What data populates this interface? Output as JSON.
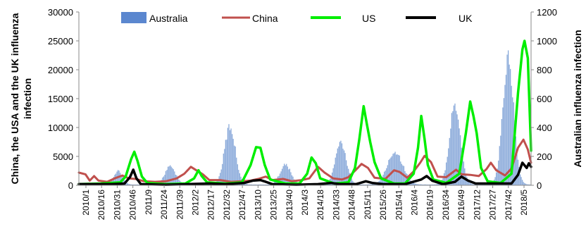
{
  "chart_data": {
    "type": "bar+line",
    "x_tick_labels": [
      "2010/1",
      "2010/16",
      "2010/31",
      "2010/46",
      "2011/9",
      "2011/24",
      "2011/39",
      "2012/2",
      "2012/17",
      "2012/32",
      "2012/47",
      "2013/10",
      "2013/25",
      "2013/40",
      "2014/3",
      "2014/18",
      "2014/33",
      "2014/48",
      "2015/11",
      "2015/26",
      "2015/41",
      "2016/4",
      "2016/19",
      "2016/34",
      "2016/49",
      "2017/12",
      "2017/27",
      "2017/42",
      "2018/5"
    ],
    "left_axis": {
      "label": "China, the USA and the UK influenza infection",
      "ylim": [
        0,
        30000
      ],
      "ticks": [
        0,
        5000,
        10000,
        15000,
        20000,
        25000,
        30000
      ]
    },
    "right_axis": {
      "label": "Australian influenza infection",
      "ylim": [
        0,
        1200
      ],
      "ticks": [
        0,
        200,
        400,
        600,
        800,
        1000,
        1200
      ]
    },
    "legend": [
      {
        "name": "Australia",
        "color": "#4472c4",
        "kind": "bar"
      },
      {
        "name": "China",
        "color": "#c0504d",
        "kind": "line"
      },
      {
        "name": "US",
        "color": "#00ee00",
        "kind": "line"
      },
      {
        "name": "UK",
        "color": "#000000",
        "kind": "line"
      }
    ],
    "series": [
      {
        "name": "Australia",
        "axis": "right",
        "kind": "bar",
        "color": "#7ea1d6",
        "peaks": [
          {
            "week": 36,
            "value": 100,
            "width": 4
          },
          {
            "week": 84,
            "value": 135,
            "width": 5
          },
          {
            "week": 139,
            "value": 440,
            "width": 5
          },
          {
            "week": 190,
            "value": 150,
            "width": 5
          },
          {
            "week": 241,
            "value": 320,
            "width": 5
          },
          {
            "week": 291,
            "value": 250,
            "width": 7
          },
          {
            "week": 346,
            "value": 610,
            "width": 5
          },
          {
            "week": 395,
            "value": 960,
            "width": 5
          }
        ]
      },
      {
        "name": "China",
        "axis": "left",
        "kind": "line",
        "color": "#c0504d",
        "points": [
          [
            0,
            2200
          ],
          [
            6,
            1900
          ],
          [
            10,
            800
          ],
          [
            14,
            1600
          ],
          [
            18,
            800
          ],
          [
            26,
            600
          ],
          [
            33,
            1200
          ],
          [
            40,
            1700
          ],
          [
            46,
            1200
          ],
          [
            52,
            1100
          ],
          [
            60,
            700
          ],
          [
            70,
            600
          ],
          [
            80,
            700
          ],
          [
            90,
            1200
          ],
          [
            97,
            2000
          ],
          [
            103,
            3200
          ],
          [
            108,
            2600
          ],
          [
            114,
            1900
          ],
          [
            120,
            900
          ],
          [
            130,
            900
          ],
          [
            140,
            600
          ],
          [
            150,
            700
          ],
          [
            158,
            800
          ],
          [
            165,
            1100
          ],
          [
            172,
            1500
          ],
          [
            178,
            900
          ],
          [
            188,
            1100
          ],
          [
            196,
            700
          ],
          [
            205,
            900
          ],
          [
            212,
            1200
          ],
          [
            216,
            2200
          ],
          [
            220,
            3200
          ],
          [
            226,
            2200
          ],
          [
            234,
            1200
          ],
          [
            242,
            1000
          ],
          [
            248,
            1400
          ],
          [
            255,
            2700
          ],
          [
            260,
            3700
          ],
          [
            266,
            3000
          ],
          [
            272,
            1300
          ],
          [
            282,
            1100
          ],
          [
            290,
            2600
          ],
          [
            295,
            2300
          ],
          [
            302,
            1300
          ],
          [
            308,
            2400
          ],
          [
            314,
            3900
          ],
          [
            318,
            5100
          ],
          [
            324,
            4000
          ],
          [
            330,
            1500
          ],
          [
            338,
            1400
          ],
          [
            347,
            2700
          ],
          [
            352,
            1900
          ],
          [
            360,
            1800
          ],
          [
            368,
            1600
          ],
          [
            375,
            2800
          ],
          [
            379,
            3900
          ],
          [
            384,
            2600
          ],
          [
            392,
            1700
          ],
          [
            398,
            2900
          ],
          [
            404,
            6500
          ],
          [
            409,
            7900
          ],
          [
            413,
            6200
          ],
          [
            416,
            3900
          ]
        ]
      },
      {
        "name": "US",
        "axis": "left",
        "kind": "line",
        "color": "#00ee00",
        "points": [
          [
            0,
            200
          ],
          [
            20,
            300
          ],
          [
            38,
            500
          ],
          [
            43,
            1500
          ],
          [
            48,
            4500
          ],
          [
            51,
            5800
          ],
          [
            54,
            4200
          ],
          [
            58,
            1500
          ],
          [
            63,
            400
          ],
          [
            80,
            200
          ],
          [
            98,
            300
          ],
          [
            106,
            1200
          ],
          [
            110,
            2600
          ],
          [
            113,
            1600
          ],
          [
            118,
            500
          ],
          [
            135,
            300
          ],
          [
            150,
            500
          ],
          [
            158,
            3500
          ],
          [
            163,
            6600
          ],
          [
            167,
            6500
          ],
          [
            171,
            3500
          ],
          [
            176,
            1000
          ],
          [
            190,
            300
          ],
          [
            203,
            300
          ],
          [
            210,
            2000
          ],
          [
            214,
            4800
          ],
          [
            218,
            3800
          ],
          [
            222,
            1200
          ],
          [
            235,
            300
          ],
          [
            248,
            500
          ],
          [
            254,
            3000
          ],
          [
            258,
            8000
          ],
          [
            262,
            13700
          ],
          [
            265,
            10500
          ],
          [
            268,
            7500
          ],
          [
            272,
            4000
          ],
          [
            278,
            1200
          ],
          [
            290,
            300
          ],
          [
            300,
            300
          ],
          [
            308,
            2000
          ],
          [
            312,
            6500
          ],
          [
            315,
            12000
          ],
          [
            318,
            8000
          ],
          [
            321,
            3500
          ],
          [
            326,
            1000
          ],
          [
            338,
            400
          ],
          [
            350,
            2000
          ],
          [
            356,
            9000
          ],
          [
            360,
            14500
          ],
          [
            363,
            12000
          ],
          [
            366,
            9000
          ],
          [
            370,
            3000
          ],
          [
            376,
            700
          ],
          [
            388,
            400
          ],
          [
            398,
            2000
          ],
          [
            404,
            16000
          ],
          [
            408,
            23500
          ],
          [
            410,
            25000
          ],
          [
            413,
            22000
          ],
          [
            416,
            6000
          ]
        ]
      },
      {
        "name": "UK",
        "axis": "left",
        "kind": "line",
        "color": "#000000",
        "points": [
          [
            0,
            200
          ],
          [
            30,
            200
          ],
          [
            42,
            300
          ],
          [
            47,
            1400
          ],
          [
            50,
            2700
          ],
          [
            53,
            1200
          ],
          [
            57,
            200
          ],
          [
            80,
            100
          ],
          [
            100,
            200
          ],
          [
            120,
            300
          ],
          [
            135,
            200
          ],
          [
            152,
            400
          ],
          [
            160,
            800
          ],
          [
            167,
            900
          ],
          [
            172,
            600
          ],
          [
            178,
            200
          ],
          [
            200,
            100
          ],
          [
            220,
            200
          ],
          [
            232,
            400
          ],
          [
            240,
            200
          ],
          [
            255,
            200
          ],
          [
            264,
            700
          ],
          [
            270,
            400
          ],
          [
            280,
            200
          ],
          [
            300,
            200
          ],
          [
            315,
            1000
          ],
          [
            320,
            1600
          ],
          [
            325,
            800
          ],
          [
            335,
            200
          ],
          [
            346,
            600
          ],
          [
            352,
            1500
          ],
          [
            358,
            800
          ],
          [
            365,
            300
          ],
          [
            380,
            300
          ],
          [
            398,
            300
          ],
          [
            404,
            1800
          ],
          [
            408,
            3900
          ],
          [
            412,
            3000
          ],
          [
            414,
            3800
          ],
          [
            416,
            3200
          ]
        ]
      }
    ]
  }
}
